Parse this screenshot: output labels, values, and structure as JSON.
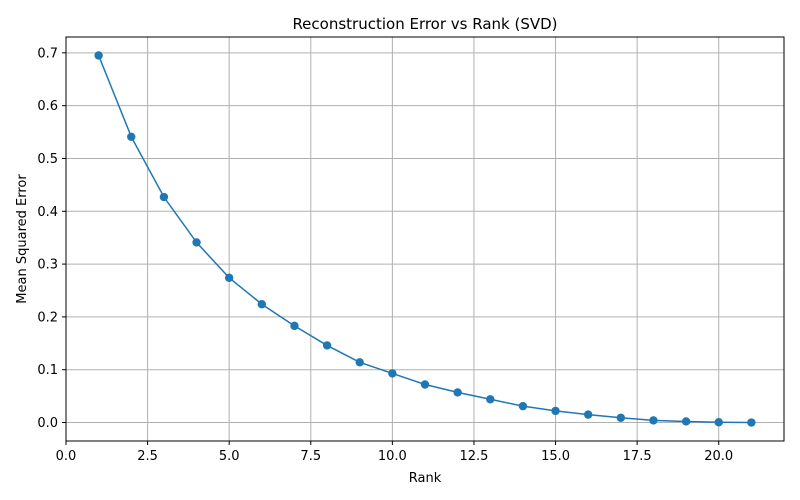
{
  "chart_data": {
    "type": "line",
    "title": "Reconstruction Error vs Rank (SVD)",
    "xlabel": "Rank",
    "ylabel": "Mean Squared Error",
    "xlim": [
      0,
      22.0
    ],
    "ylim": [
      -0.035,
      0.73
    ],
    "xticks": [
      0,
      2.5,
      5,
      7.5,
      10,
      12.5,
      15,
      17.5,
      20
    ],
    "xtick_labels": [
      "0.0",
      "2.5",
      "5.0",
      "7.5",
      "10.0",
      "12.5",
      "15.0",
      "17.5",
      "20.0"
    ],
    "yticks": [
      0,
      0.1,
      0.2,
      0.3,
      0.4,
      0.5,
      0.6,
      0.7
    ],
    "ytick_labels": [
      "0.0",
      "0.1",
      "0.2",
      "0.3",
      "0.4",
      "0.5",
      "0.6",
      "0.7"
    ],
    "grid": true,
    "color": "#1f77b4",
    "series": [
      {
        "x": [
          1,
          2,
          3,
          4,
          5,
          6,
          7,
          8,
          9,
          10,
          11,
          12,
          13,
          14,
          15,
          16,
          17,
          18,
          19,
          20,
          21
        ],
        "y": [
          0.695,
          0.541,
          0.427,
          0.341,
          0.274,
          0.224,
          0.183,
          0.146,
          0.114,
          0.093,
          0.072,
          0.057,
          0.044,
          0.031,
          0.022,
          0.015,
          0.009,
          0.004,
          0.002,
          0.0005,
          0.0
        ]
      }
    ]
  }
}
